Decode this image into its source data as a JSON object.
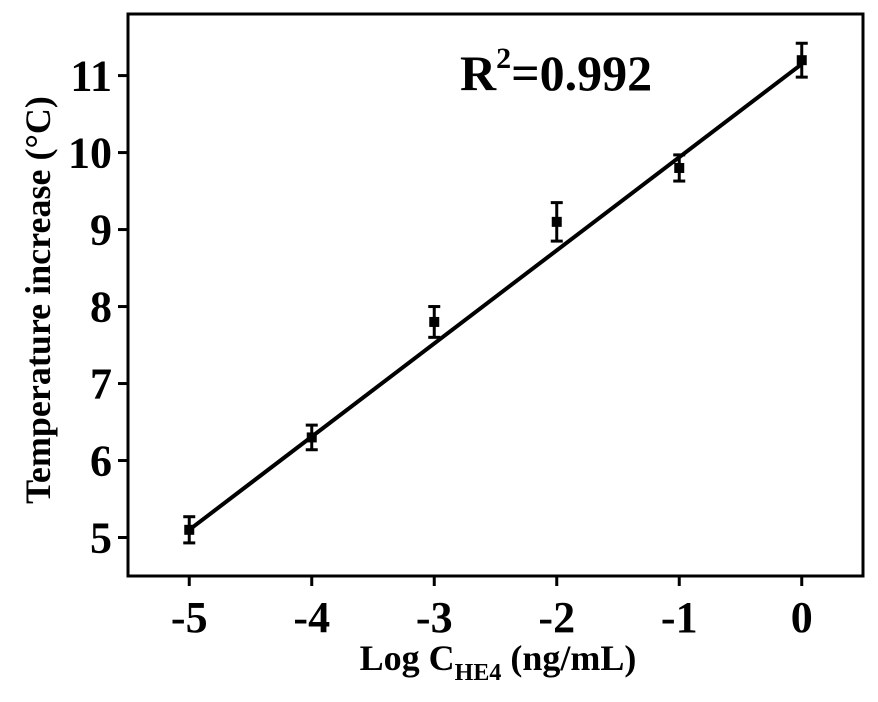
{
  "chart_data": {
    "type": "scatter",
    "xlabel_main": "Log C",
    "xlabel_sub": "HE4",
    "xlabel_unit": " (ng/mL)",
    "ylabel": "Temperature increase (°C)",
    "annotation_main": "R",
    "annotation_sup": "2",
    "annotation_value": "=0.992",
    "xlim": [
      -5.5,
      0.5
    ],
    "ylim": [
      4.5,
      11.8
    ],
    "x_ticks": [
      "-5",
      "-4",
      "-3",
      "-2",
      "-1",
      "0"
    ],
    "y_ticks": [
      "5",
      "6",
      "7",
      "8",
      "9",
      "10",
      "11"
    ],
    "points": [
      {
        "x": -5,
        "y": 5.1,
        "err": 0.17
      },
      {
        "x": -4,
        "y": 6.3,
        "err": 0.16
      },
      {
        "x": -3,
        "y": 7.8,
        "err": 0.2
      },
      {
        "x": -2,
        "y": 9.1,
        "err": 0.25
      },
      {
        "x": -1,
        "y": 9.8,
        "err": 0.17
      },
      {
        "x": 0,
        "y": 11.2,
        "err": 0.22
      }
    ],
    "fit_line": {
      "x": [
        -5,
        0
      ],
      "y": [
        5.1,
        11.15
      ]
    },
    "grid": false,
    "legend": "none"
  }
}
